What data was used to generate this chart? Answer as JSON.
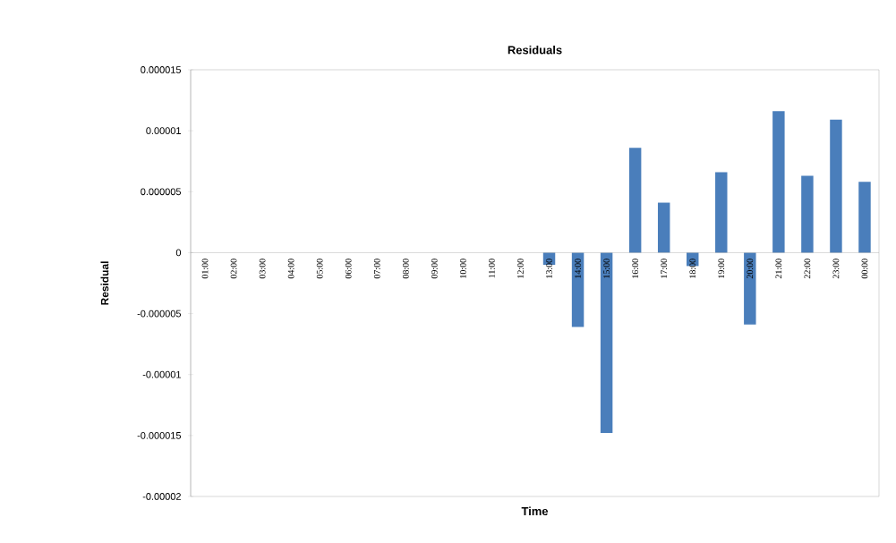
{
  "chart_data": {
    "type": "bar",
    "title": "Residuals",
    "xlabel": "Time",
    "ylabel": "Residual",
    "categories": [
      "01:00",
      "02:00",
      "03:00",
      "04:00",
      "05:00",
      "06:00",
      "07:00",
      "08:00",
      "09:00",
      "10:00",
      "11:00",
      "12:00",
      "13:00",
      "14:00",
      "15:00",
      "16:00",
      "17:00",
      "18:00",
      "19:00",
      "20:00",
      "21:00",
      "22:00",
      "23:00",
      "00:00"
    ],
    "values": [
      0,
      0,
      0,
      0,
      0,
      0,
      0,
      0,
      0,
      0,
      0,
      0,
      -1e-06,
      -6.1e-06,
      -1.48e-05,
      8.6e-06,
      4.1e-06,
      -1.1e-06,
      6.6e-06,
      -5.9e-06,
      1.16e-05,
      6.3e-06,
      1.09e-05,
      5.8e-06
    ],
    "color": "#4a7ebb",
    "ylim": [
      -2e-05,
      1.5e-05
    ],
    "yticks": [
      {
        "value": -2e-05,
        "label": "-0.00002"
      },
      {
        "value": -1.5e-05,
        "label": "-0.000015"
      },
      {
        "value": -1e-05,
        "label": "-0.00001"
      },
      {
        "value": -5e-06,
        "label": "-0.000005"
      },
      0,
      {
        "value": 5e-06,
        "label": "0.000005"
      },
      {
        "value": 1e-05,
        "label": "0.00001"
      },
      {
        "value": 1.5e-05,
        "label": "0.000015"
      }
    ],
    "grid": false
  }
}
